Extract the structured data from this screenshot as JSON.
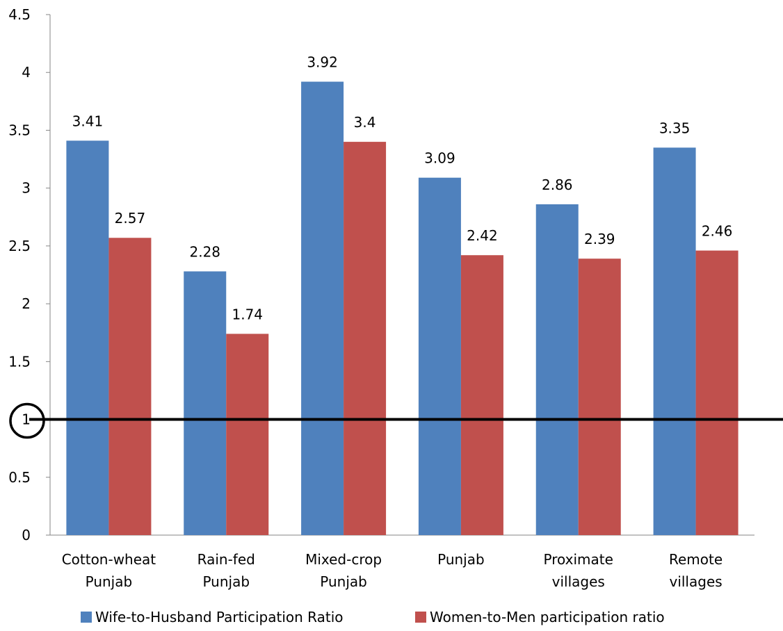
{
  "chart_data": {
    "type": "bar",
    "categories": [
      [
        "Cotton-wheat",
        "Punjab"
      ],
      [
        "Rain-fed",
        "Punjab"
      ],
      [
        "Mixed-crop",
        "Punjab"
      ],
      [
        "Punjab"
      ],
      [
        "Proximate",
        "villages"
      ],
      [
        "Remote",
        "villages"
      ]
    ],
    "series": [
      {
        "name": "Wife-to-Husband Participation Ratio",
        "color": "#4f81bd",
        "values": [
          3.41,
          2.28,
          3.92,
          3.09,
          2.86,
          3.35
        ]
      },
      {
        "name": "Women-to-Men participation ratio",
        "color": "#c0504d",
        "values": [
          2.57,
          1.74,
          3.4,
          2.42,
          2.39,
          2.46
        ]
      }
    ],
    "data_labels": [
      [
        "3.41",
        "2.28",
        "3.92",
        "3.09",
        "2.86",
        "3.35"
      ],
      [
        "2.57",
        "1.74",
        "3.4",
        "2.42",
        "2.39",
        "2.46"
      ]
    ],
    "y_ticks": [
      "0",
      "0.5",
      "1",
      "1.5",
      "2",
      "2.5",
      "3",
      "3.5",
      "4",
      "4.5"
    ],
    "ylim": [
      0,
      4.5
    ],
    "reference_line": {
      "value": 1,
      "color": "#000000",
      "circled_tick": "1"
    },
    "grid": false,
    "legend_position": "bottom",
    "title": "",
    "xlabel": "",
    "ylabel": ""
  }
}
